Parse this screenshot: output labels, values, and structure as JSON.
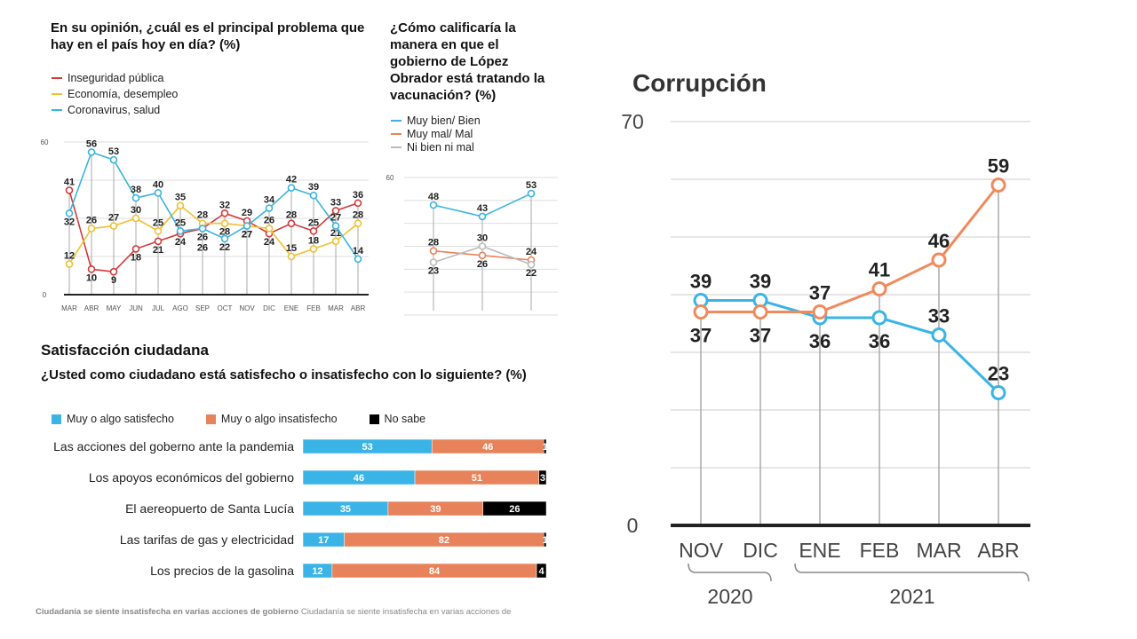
{
  "chart_data": [
    {
      "type": "line",
      "title": "En su opinión, ¿cuál es el principal problema que hay en el país hoy en día?  (%)",
      "categories": [
        "MAR",
        "ABR",
        "MAY",
        "JUN",
        "JUL",
        "AGO",
        "SEP",
        "OCT",
        "NOV",
        "DIC",
        "ENE",
        "FEB",
        "MAR",
        "ABR"
      ],
      "ylim": [
        0,
        60
      ],
      "yticks": [
        "0",
        "60"
      ],
      "grid": true,
      "legend": "top-left",
      "series": [
        {
          "name": "Inseguridad pública",
          "color": "#d23b3b",
          "values": [
            41,
            10,
            9,
            18,
            21,
            24,
            26,
            32,
            29,
            24,
            28,
            25,
            33,
            36
          ]
        },
        {
          "name": "Economía, desempleo",
          "color": "#f0c030",
          "values": [
            12,
            26,
            27,
            30,
            25,
            35,
            28,
            28,
            27,
            26,
            15,
            18,
            21,
            28
          ]
        },
        {
          "name": "Coronavirus, salud",
          "color": "#3ab4dc",
          "values": [
            32,
            56,
            53,
            38,
            40,
            25,
            26,
            22,
            27,
            34,
            42,
            39,
            27,
            14
          ]
        }
      ]
    },
    {
      "type": "line",
      "title": "¿Cómo calificaría la manera en que el gobierno de López Obrador está tratando la vacunación? (%)",
      "ylim": [
        0,
        60
      ],
      "yticks": [
        "60"
      ],
      "grid": true,
      "legend": "top-left",
      "series": [
        {
          "name": "Muy bien/ Bien",
          "color": "#3ab4dc",
          "values": [
            48,
            43,
            53
          ]
        },
        {
          "name": "Muy mal/ Mal",
          "color": "#e8825a",
          "values": [
            28,
            26,
            24
          ]
        },
        {
          "name": "Ni bien ni mal",
          "color": "#bbbbbb",
          "values": [
            23,
            30,
            22
          ]
        }
      ]
    },
    {
      "type": "bar",
      "orientation": "horizontal",
      "stacked": true,
      "title": "Satisfacción ciudadana",
      "subtitle": "¿Usted como ciudadano está satisfecho o insatisfecho con lo siguiente? (%)",
      "categories": [
        "Las acciones del goberno ante la pandemia",
        "Los apoyos económicos del gobierno",
        "El aereopuerto de Santa Lucía",
        "Las tarifas de gas y electricidad",
        "Los precios de la gasolina"
      ],
      "legend": "top",
      "series": [
        {
          "name": "Muy o algo satisfecho",
          "color": "#3ab4e6",
          "values": [
            53,
            46,
            35,
            17,
            12
          ]
        },
        {
          "name": "Muy o algo insatisfecho",
          "color": "#e8825a",
          "values": [
            46,
            51,
            39,
            82,
            84
          ]
        },
        {
          "name": "No sabe",
          "color": "#000000",
          "values": [
            1,
            3,
            26,
            1,
            4
          ]
        }
      ]
    },
    {
      "type": "line",
      "title": "Corrupción",
      "categories": [
        "NOV",
        "DIC",
        "ENE",
        "FEB",
        "MAR",
        "ABR"
      ],
      "groups": [
        {
          "label": "2020",
          "span": [
            "NOV",
            "DIC"
          ]
        },
        {
          "label": "2021",
          "span": [
            "ENE",
            "ABR"
          ]
        }
      ],
      "ylim": [
        0,
        70
      ],
      "yticks": [
        "0",
        "70"
      ],
      "grid": true,
      "series": [
        {
          "color": "#3ab4e6",
          "values": [
            39,
            39,
            36,
            36,
            33,
            23
          ]
        },
        {
          "color": "#f08a5d",
          "values": [
            37,
            37,
            37,
            41,
            46,
            59
          ]
        }
      ]
    }
  ],
  "caption": {
    "bold": "Ciudadanía se siente insatisfecha en varias acciones de gobierno",
    "text": "Ciudadanía se siente insatisfecha en varias acciones de"
  }
}
